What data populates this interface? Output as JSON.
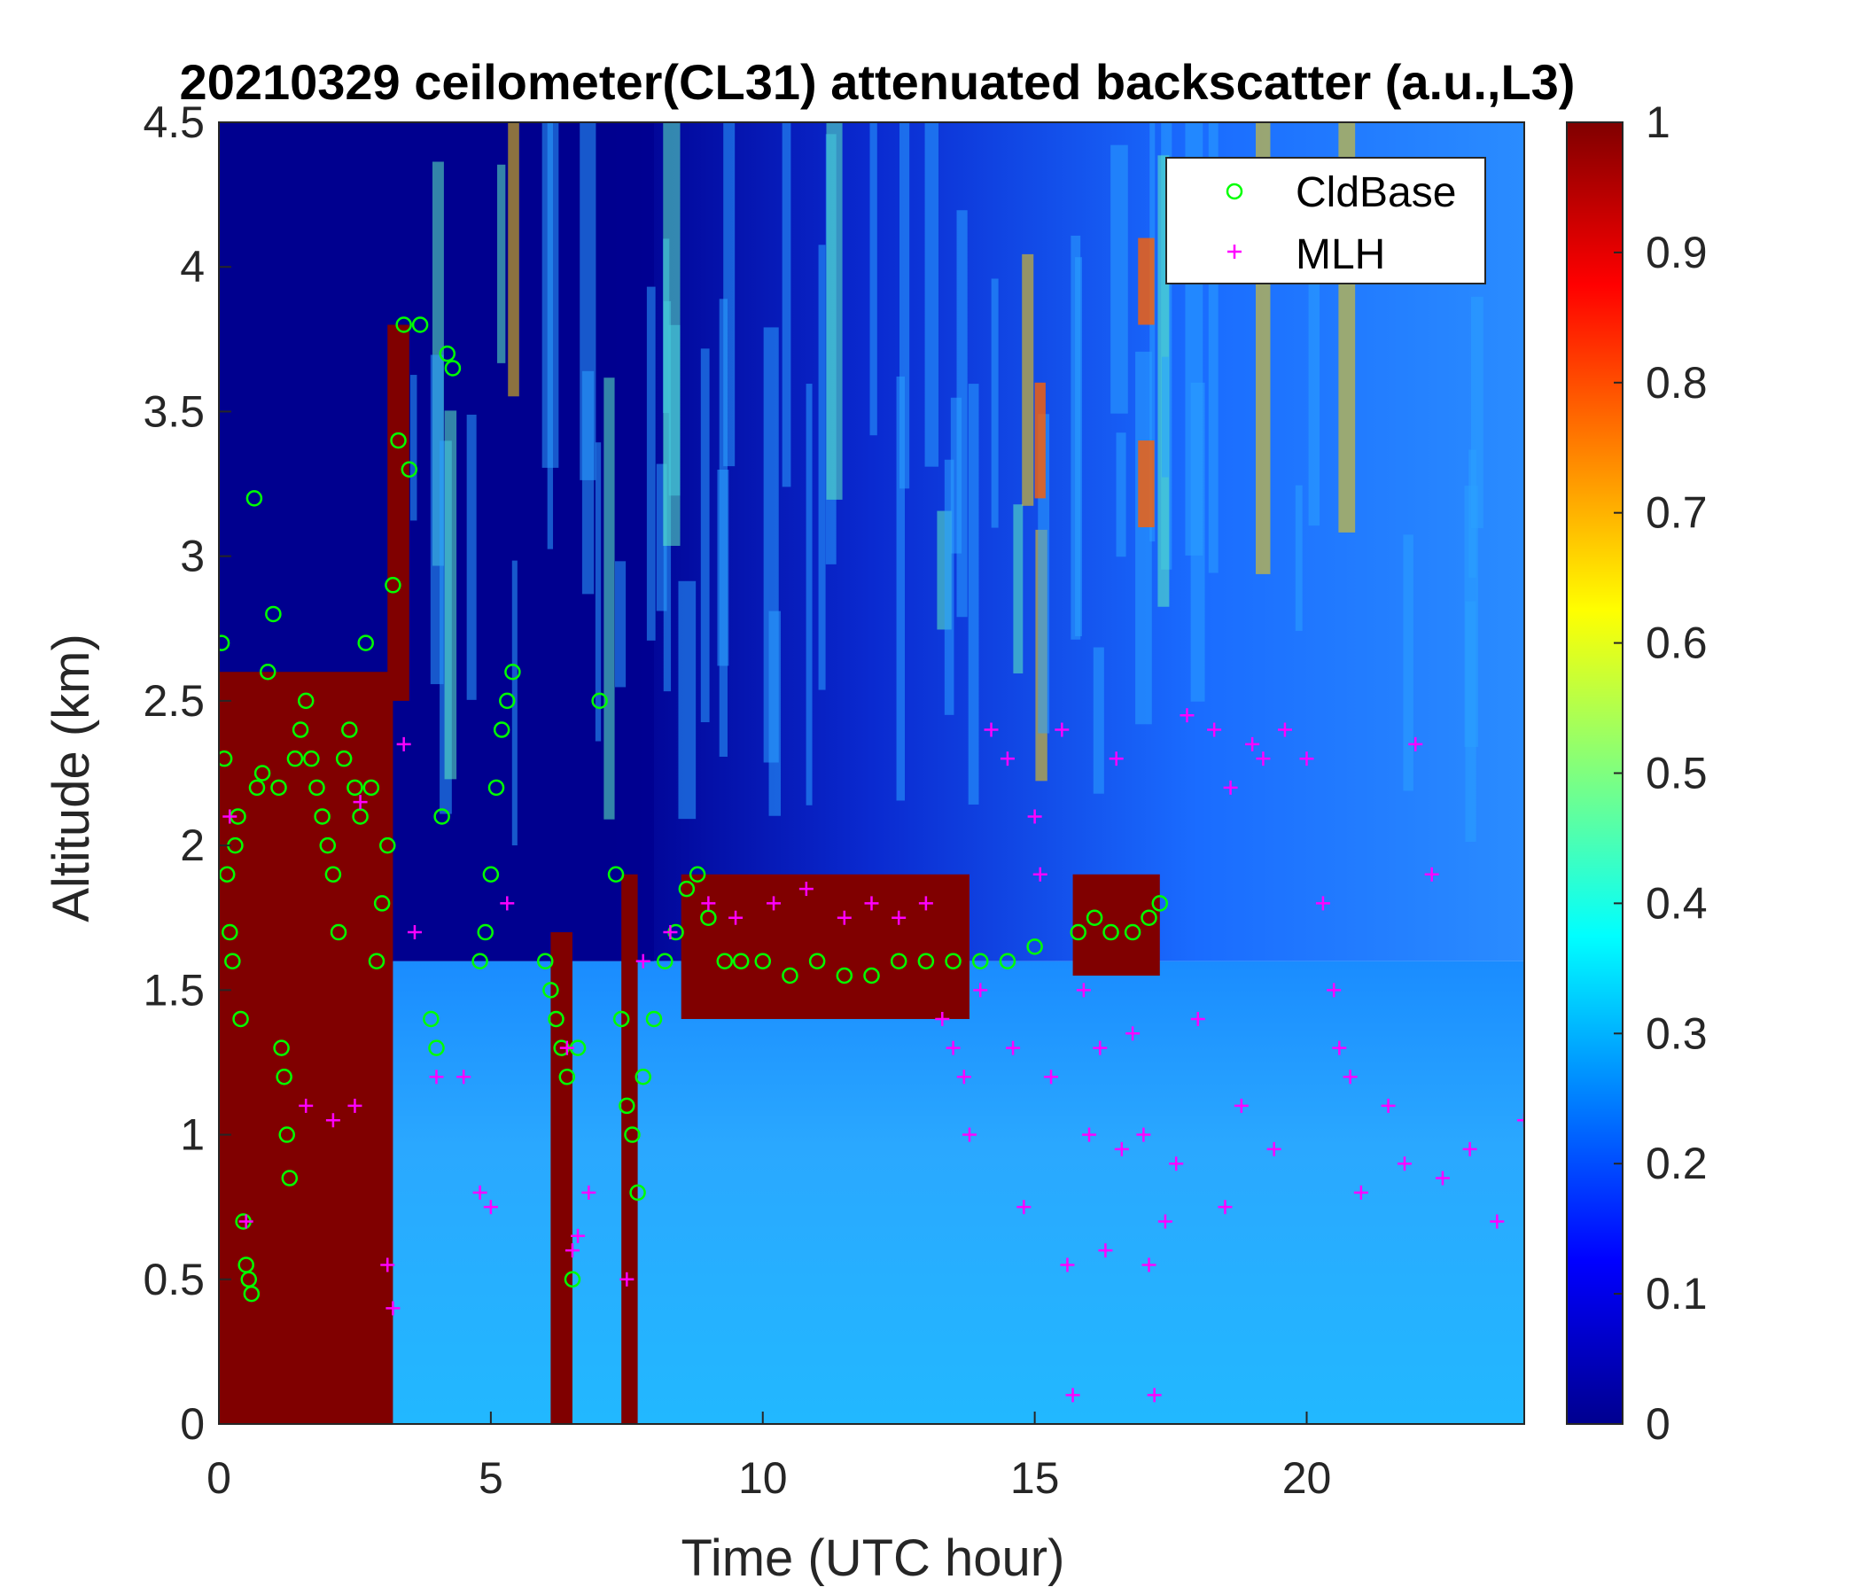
{
  "chart_data": {
    "type": "heatmap",
    "title": "20210329 ceilometer(CL31) attenuated backscatter (a.u.,L3)",
    "xlabel": "Time (UTC hour)",
    "ylabel": "Altitude (km)",
    "xlim": [
      0,
      24
    ],
    "ylim": [
      0,
      4.5
    ],
    "x_ticks": [
      "0",
      "5",
      "10",
      "15",
      "20"
    ],
    "y_ticks": [
      "0",
      "0.5",
      "1",
      "1.5",
      "2",
      "2.5",
      "3",
      "3.5",
      "4",
      "4.5"
    ],
    "colorbar": {
      "colormap": "jet",
      "range": [
        0,
        1
      ],
      "ticks": [
        "0",
        "0.1",
        "0.2",
        "0.3",
        "0.4",
        "0.5",
        "0.6",
        "0.7",
        "0.8",
        "0.9",
        "1"
      ]
    },
    "legend": {
      "position": "top-right",
      "entries": [
        {
          "label": "CldBase",
          "marker": "circle",
          "color": "#00ff00"
        },
        {
          "label": "MLH",
          "marker": "plus",
          "color": "#ff00ff"
        }
      ]
    },
    "series": [
      {
        "name": "CldBase",
        "points": [
          [
            0.05,
            2.7
          ],
          [
            0.1,
            2.3
          ],
          [
            0.15,
            1.9
          ],
          [
            0.2,
            1.7
          ],
          [
            0.25,
            1.6
          ],
          [
            0.3,
            2.0
          ],
          [
            0.35,
            2.1
          ],
          [
            0.4,
            1.4
          ],
          [
            0.45,
            0.7
          ],
          [
            0.5,
            0.55
          ],
          [
            0.55,
            0.5
          ],
          [
            0.6,
            0.45
          ],
          [
            0.65,
            3.2
          ],
          [
            0.7,
            2.2
          ],
          [
            0.8,
            2.25
          ],
          [
            0.9,
            2.6
          ],
          [
            1.0,
            2.8
          ],
          [
            1.1,
            2.2
          ],
          [
            1.15,
            1.3
          ],
          [
            1.2,
            1.2
          ],
          [
            1.25,
            1.0
          ],
          [
            1.3,
            0.85
          ],
          [
            1.4,
            2.3
          ],
          [
            1.5,
            2.4
          ],
          [
            1.6,
            2.5
          ],
          [
            1.7,
            2.3
          ],
          [
            1.8,
            2.2
          ],
          [
            1.9,
            2.1
          ],
          [
            2.0,
            2.0
          ],
          [
            2.1,
            1.9
          ],
          [
            2.2,
            1.7
          ],
          [
            2.3,
            2.3
          ],
          [
            2.4,
            2.4
          ],
          [
            2.5,
            2.2
          ],
          [
            2.6,
            2.1
          ],
          [
            2.7,
            2.7
          ],
          [
            2.8,
            2.2
          ],
          [
            2.9,
            1.6
          ],
          [
            3.0,
            1.8
          ],
          [
            3.1,
            2.0
          ],
          [
            3.2,
            2.9
          ],
          [
            3.3,
            3.4
          ],
          [
            3.4,
            3.8
          ],
          [
            3.5,
            3.3
          ],
          [
            3.7,
            3.8
          ],
          [
            3.9,
            1.4
          ],
          [
            4.0,
            1.3
          ],
          [
            4.1,
            2.1
          ],
          [
            4.2,
            3.7
          ],
          [
            4.3,
            3.65
          ],
          [
            4.8,
            1.6
          ],
          [
            4.9,
            1.7
          ],
          [
            5.0,
            1.9
          ],
          [
            5.1,
            2.2
          ],
          [
            5.2,
            2.4
          ],
          [
            5.3,
            2.5
          ],
          [
            5.4,
            2.6
          ],
          [
            6.0,
            1.6
          ],
          [
            6.1,
            1.5
          ],
          [
            6.2,
            1.4
          ],
          [
            6.3,
            1.3
          ],
          [
            6.4,
            1.2
          ],
          [
            6.5,
            0.5
          ],
          [
            6.6,
            1.3
          ],
          [
            7.0,
            2.5
          ],
          [
            7.3,
            1.9
          ],
          [
            7.4,
            1.4
          ],
          [
            7.5,
            1.1
          ],
          [
            7.6,
            1.0
          ],
          [
            7.7,
            0.8
          ],
          [
            7.8,
            1.2
          ],
          [
            8.0,
            1.4
          ],
          [
            8.2,
            1.6
          ],
          [
            8.4,
            1.7
          ],
          [
            8.6,
            1.85
          ],
          [
            8.8,
            1.9
          ],
          [
            9.0,
            1.75
          ],
          [
            9.3,
            1.6
          ],
          [
            9.6,
            1.6
          ],
          [
            10.0,
            1.6
          ],
          [
            10.5,
            1.55
          ],
          [
            11.0,
            1.6
          ],
          [
            11.5,
            1.55
          ],
          [
            12.0,
            1.55
          ],
          [
            12.5,
            1.6
          ],
          [
            13.0,
            1.6
          ],
          [
            13.5,
            1.6
          ],
          [
            14.0,
            1.6
          ],
          [
            14.5,
            1.6
          ],
          [
            15.0,
            1.65
          ],
          [
            15.8,
            1.7
          ],
          [
            16.1,
            1.75
          ],
          [
            16.4,
            1.7
          ],
          [
            16.8,
            1.7
          ],
          [
            17.1,
            1.75
          ],
          [
            17.3,
            1.8
          ]
        ]
      },
      {
        "name": "MLH",
        "points": [
          [
            0.2,
            2.1
          ],
          [
            0.5,
            0.7
          ],
          [
            1.6,
            1.1
          ],
          [
            2.1,
            1.05
          ],
          [
            2.5,
            1.1
          ],
          [
            2.6,
            2.15
          ],
          [
            3.1,
            0.55
          ],
          [
            3.2,
            0.4
          ],
          [
            3.4,
            2.35
          ],
          [
            3.6,
            1.7
          ],
          [
            4.0,
            1.2
          ],
          [
            4.5,
            1.2
          ],
          [
            4.8,
            0.8
          ],
          [
            5.0,
            0.75
          ],
          [
            5.3,
            1.8
          ],
          [
            6.4,
            1.3
          ],
          [
            6.5,
            0.6
          ],
          [
            6.6,
            0.65
          ],
          [
            6.8,
            0.8
          ],
          [
            7.5,
            0.5
          ],
          [
            7.8,
            1.6
          ],
          [
            8.3,
            1.7
          ],
          [
            9.0,
            1.8
          ],
          [
            9.5,
            1.75
          ],
          [
            10.2,
            1.8
          ],
          [
            10.8,
            1.85
          ],
          [
            11.5,
            1.75
          ],
          [
            12.0,
            1.8
          ],
          [
            12.5,
            1.75
          ],
          [
            13.0,
            1.8
          ],
          [
            13.3,
            1.4
          ],
          [
            13.5,
            1.3
          ],
          [
            13.7,
            1.2
          ],
          [
            13.8,
            1.0
          ],
          [
            14.0,
            1.5
          ],
          [
            14.2,
            2.4
          ],
          [
            14.5,
            2.3
          ],
          [
            14.6,
            1.3
          ],
          [
            14.8,
            0.75
          ],
          [
            15.0,
            2.1
          ],
          [
            15.1,
            1.9
          ],
          [
            15.3,
            1.2
          ],
          [
            15.5,
            2.4
          ],
          [
            15.6,
            0.55
          ],
          [
            15.7,
            0.1
          ],
          [
            15.9,
            1.5
          ],
          [
            16.0,
            1.0
          ],
          [
            16.2,
            1.3
          ],
          [
            16.3,
            0.6
          ],
          [
            16.5,
            2.3
          ],
          [
            16.6,
            0.95
          ],
          [
            16.8,
            1.35
          ],
          [
            17.0,
            1.0
          ],
          [
            17.1,
            0.55
          ],
          [
            17.2,
            0.1
          ],
          [
            17.4,
            0.7
          ],
          [
            17.6,
            0.9
          ],
          [
            17.8,
            2.45
          ],
          [
            18.0,
            1.4
          ],
          [
            18.3,
            2.4
          ],
          [
            18.5,
            0.75
          ],
          [
            18.6,
            2.2
          ],
          [
            18.8,
            1.1
          ],
          [
            19.0,
            2.35
          ],
          [
            19.2,
            2.3
          ],
          [
            19.4,
            0.95
          ],
          [
            19.6,
            2.4
          ],
          [
            20.0,
            2.3
          ],
          [
            20.3,
            1.8
          ],
          [
            20.5,
            1.5
          ],
          [
            20.6,
            1.3
          ],
          [
            20.8,
            1.2
          ],
          [
            21.0,
            0.8
          ],
          [
            21.5,
            1.1
          ],
          [
            21.8,
            0.9
          ],
          [
            22.0,
            2.35
          ],
          [
            22.3,
            1.9
          ],
          [
            22.5,
            0.85
          ],
          [
            23.0,
            0.95
          ],
          [
            23.5,
            0.7
          ],
          [
            24.0,
            1.05
          ]
        ]
      }
    ]
  }
}
